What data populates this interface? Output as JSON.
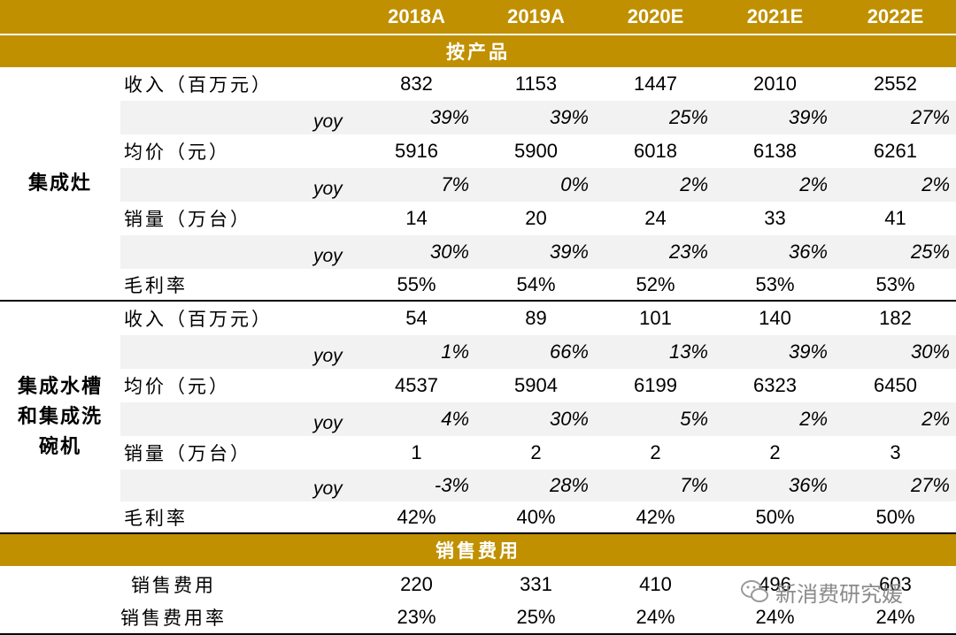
{
  "header": {
    "years": [
      "2018A",
      "2019A",
      "2020E",
      "2021E",
      "2022E"
    ]
  },
  "sections": {
    "by_product": "按产品",
    "sales_expense": "销售费用"
  },
  "groups": {
    "stove": "集成灶",
    "sink": "集成水槽和集成洗碗机"
  },
  "stove_rows": [
    {
      "label": "收入（百万元）",
      "values": [
        "832",
        "1153",
        "1447",
        "2010",
        "2552"
      ]
    },
    {
      "label": "yoy",
      "values": [
        "39%",
        "39%",
        "25%",
        "39%",
        "27%"
      ]
    },
    {
      "label": "均价（元）",
      "values": [
        "5916",
        "5900",
        "6018",
        "6138",
        "6261"
      ]
    },
    {
      "label": "yoy",
      "values": [
        "7%",
        "0%",
        "2%",
        "2%",
        "2%"
      ]
    },
    {
      "label": "销量（万台）",
      "values": [
        "14",
        "20",
        "24",
        "33",
        "41"
      ]
    },
    {
      "label": "yoy",
      "values": [
        "30%",
        "39%",
        "23%",
        "36%",
        "25%"
      ]
    },
    {
      "label": "毛利率",
      "values": [
        "55%",
        "54%",
        "52%",
        "53%",
        "53%"
      ]
    }
  ],
  "sink_rows": [
    {
      "label": "收入（百万元）",
      "values": [
        "54",
        "89",
        "101",
        "140",
        "182"
      ]
    },
    {
      "label": "yoy",
      "values": [
        "1%",
        "66%",
        "13%",
        "39%",
        "30%"
      ]
    },
    {
      "label": "均价（元）",
      "values": [
        "4537",
        "5904",
        "6199",
        "6323",
        "6450"
      ]
    },
    {
      "label": "yoy",
      "values": [
        "4%",
        "30%",
        "5%",
        "2%",
        "2%"
      ]
    },
    {
      "label": "销量（万台）",
      "values": [
        "1",
        "2",
        "2",
        "2",
        "3"
      ]
    },
    {
      "label": "yoy",
      "values": [
        "-3%",
        "28%",
        "7%",
        "36%",
        "27%"
      ]
    },
    {
      "label": "毛利率",
      "values": [
        "42%",
        "40%",
        "42%",
        "50%",
        "50%"
      ]
    }
  ],
  "expense_rows": [
    {
      "label": "销售费用",
      "values": [
        "220",
        "331",
        "410",
        "496",
        "603"
      ]
    },
    {
      "label": "销售费用率",
      "values": [
        "23%",
        "25%",
        "24%",
        "24%",
        "24%"
      ]
    }
  ],
  "watermark": {
    "text": "新消费研究媛"
  },
  "colors": {
    "header_gold": "#c09000",
    "row_shade": "#f2f2f2"
  }
}
